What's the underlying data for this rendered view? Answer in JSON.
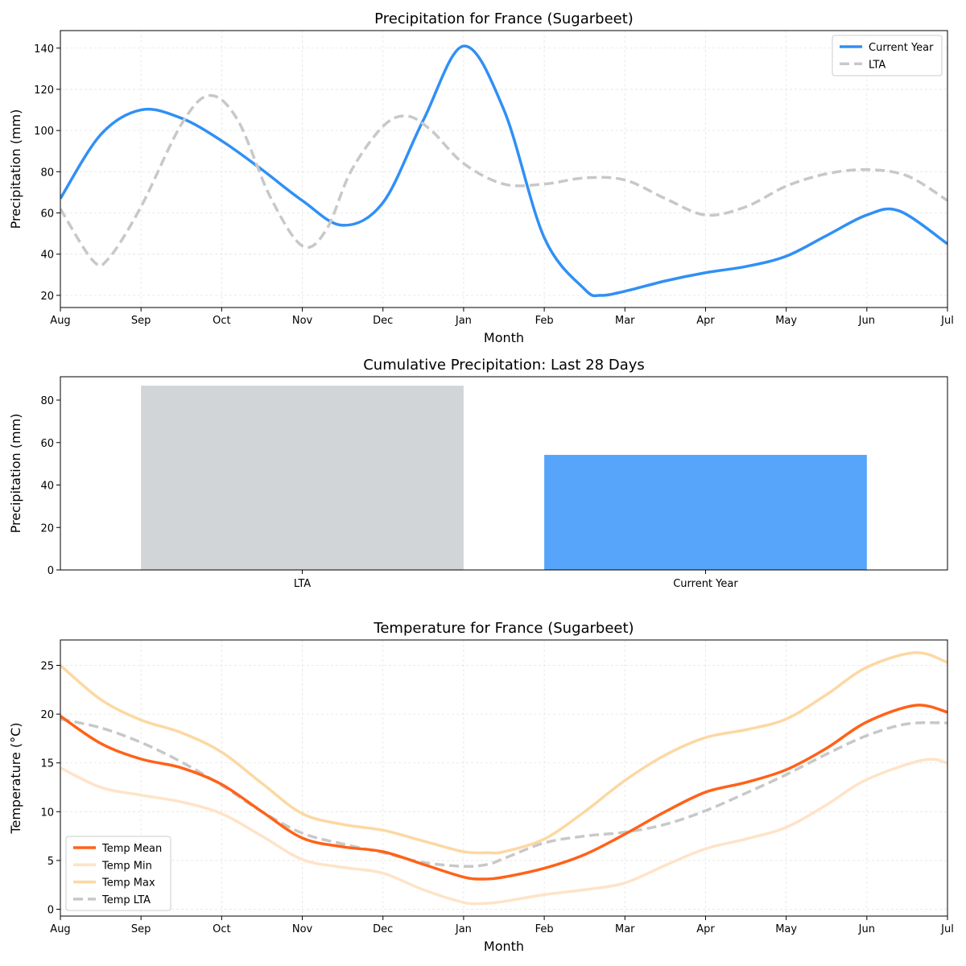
{
  "chart_data": [
    {
      "type": "line",
      "title": "Precipitation for France (Sugarbeet)",
      "xlabel": "Month",
      "ylabel": "Precipitation (mm)",
      "categories": [
        "Aug",
        "Sep",
        "Oct",
        "Nov",
        "Dec",
        "Jan",
        "Feb",
        "Mar",
        "Apr",
        "May",
        "Jun",
        "Jul"
      ],
      "ylim": [
        14.1,
        148.5
      ],
      "yticks": [
        20,
        40,
        60,
        80,
        100,
        120,
        140
      ],
      "grid": true,
      "legend": "top-right",
      "series": [
        {
          "name": "Current Year",
          "color": "#3090f5",
          "dash": false,
          "width": 3.5,
          "x": [
            0,
            0.5,
            1,
            1.5,
            2,
            2.5,
            3,
            3.5,
            4,
            4.5,
            5,
            5.5,
            6,
            6.5,
            6.7,
            7,
            7.5,
            8,
            8.5,
            9,
            9.5,
            10,
            10.4,
            11
          ],
          "y": [
            67,
            98,
            110,
            106,
            95,
            81,
            66,
            54,
            65,
            105,
            141,
            110,
            48,
            23,
            20,
            22,
            27,
            31,
            34,
            39,
            49,
            59,
            61,
            45
          ]
        },
        {
          "name": "LTA",
          "color": "#c8c8c8",
          "dash": true,
          "width": 3.5,
          "x": [
            0,
            0.4,
            0.6,
            1,
            1.5,
            1.85,
            2.2,
            2.6,
            3,
            3.3,
            3.6,
            4,
            4.3,
            4.6,
            5,
            5.5,
            6,
            6.5,
            7,
            7.5,
            8,
            8.5,
            9,
            9.5,
            10,
            10.5,
            11
          ],
          "y": [
            62,
            37,
            38,
            63,
            103,
            117,
            105,
            68,
            44,
            52,
            80,
            102,
            107,
            100,
            84,
            74,
            74,
            77,
            76,
            67,
            59,
            63,
            73,
            79,
            81,
            78,
            66
          ]
        }
      ]
    },
    {
      "type": "bar",
      "title": "Cumulative Precipitation: Last 28 Days",
      "xlabel": "",
      "ylabel": "Precipitation (mm)",
      "categories": [
        "LTA",
        "Current Year"
      ],
      "values": [
        86.8,
        54.2
      ],
      "colors": [
        "#d1d5d8",
        "#57a5fa"
      ],
      "ylim": [
        0,
        91
      ],
      "yticks": [
        0,
        20,
        40,
        60,
        80
      ]
    },
    {
      "type": "line",
      "title": "Temperature for France (Sugarbeet)",
      "xlabel": "Month",
      "ylabel": "Temperature (°C)",
      "categories": [
        "Aug",
        "Sep",
        "Oct",
        "Nov",
        "Dec",
        "Jan",
        "Feb",
        "Mar",
        "Apr",
        "May",
        "Jun",
        "Jul"
      ],
      "ylim": [
        -0.7,
        27.6
      ],
      "yticks": [
        0,
        5,
        10,
        15,
        20,
        25
      ],
      "grid": true,
      "legend": "lower-left",
      "series": [
        {
          "name": "Temp Mean",
          "color": "#ff6219",
          "dash": false,
          "width": 3.5,
          "x": [
            0,
            0.5,
            1,
            1.5,
            2,
            2.5,
            3,
            3.5,
            4,
            4.5,
            5,
            5.25,
            5.5,
            6,
            6.5,
            7,
            7.5,
            8,
            8.5,
            9,
            9.5,
            10,
            10.6,
            11
          ],
          "y": [
            19.8,
            17,
            15.4,
            14.5,
            12.8,
            10,
            7.3,
            6.4,
            5.9,
            4.6,
            3.3,
            3.1,
            3.3,
            4.2,
            5.6,
            7.7,
            10,
            12,
            13,
            14.3,
            16.5,
            19.2,
            20.9,
            20.2
          ]
        },
        {
          "name": "Temp Min",
          "color": "#ffe3c8",
          "dash": false,
          "width": 3.5,
          "x": [
            0,
            0.5,
            1,
            1.5,
            2,
            2.5,
            3,
            3.5,
            4,
            4.5,
            5,
            5.25,
            5.5,
            6,
            6.5,
            7,
            7.5,
            8,
            8.5,
            9,
            9.5,
            10,
            10.7,
            11
          ],
          "y": [
            14.5,
            12.5,
            11.7,
            11,
            9.8,
            7.5,
            5.1,
            4.3,
            3.7,
            2,
            0.7,
            0.6,
            0.8,
            1.5,
            2,
            2.7,
            4.5,
            6.2,
            7.2,
            8.4,
            10.7,
            13.3,
            15.3,
            15
          ]
        },
        {
          "name": "Temp Max",
          "color": "#fcd8a2",
          "dash": false,
          "width": 3.5,
          "x": [
            0,
            0.5,
            1,
            1.5,
            2,
            2.5,
            3,
            3.5,
            4,
            4.5,
            5,
            5.3,
            5.5,
            6,
            6.5,
            7,
            7.5,
            8,
            8.5,
            9,
            9.5,
            10,
            10.6,
            11
          ],
          "y": [
            25,
            21.5,
            19.4,
            18.1,
            16.1,
            12.9,
            9.8,
            8.7,
            8.1,
            7,
            5.9,
            5.8,
            5.9,
            7.2,
            10,
            13.2,
            15.8,
            17.6,
            18.4,
            19.5,
            22,
            24.8,
            26.3,
            25.3
          ]
        },
        {
          "name": "Temp LTA",
          "color": "#c8c8c8",
          "dash": true,
          "width": 3.5,
          "x": [
            0,
            0.5,
            1,
            1.5,
            2,
            2.5,
            3,
            3.5,
            4,
            4.5,
            5,
            5.3,
            5.5,
            6,
            6.5,
            7,
            7.5,
            8,
            8.5,
            9,
            9.5,
            10,
            10.5,
            11
          ],
          "y": [
            19.5,
            18.6,
            17.1,
            15.1,
            12.7,
            10,
            7.8,
            6.7,
            5.8,
            4.8,
            4.4,
            4.6,
            5.2,
            6.8,
            7.5,
            7.9,
            8.7,
            10.1,
            11.9,
            13.8,
            15.9,
            17.8,
            19,
            19.1
          ]
        }
      ]
    }
  ]
}
